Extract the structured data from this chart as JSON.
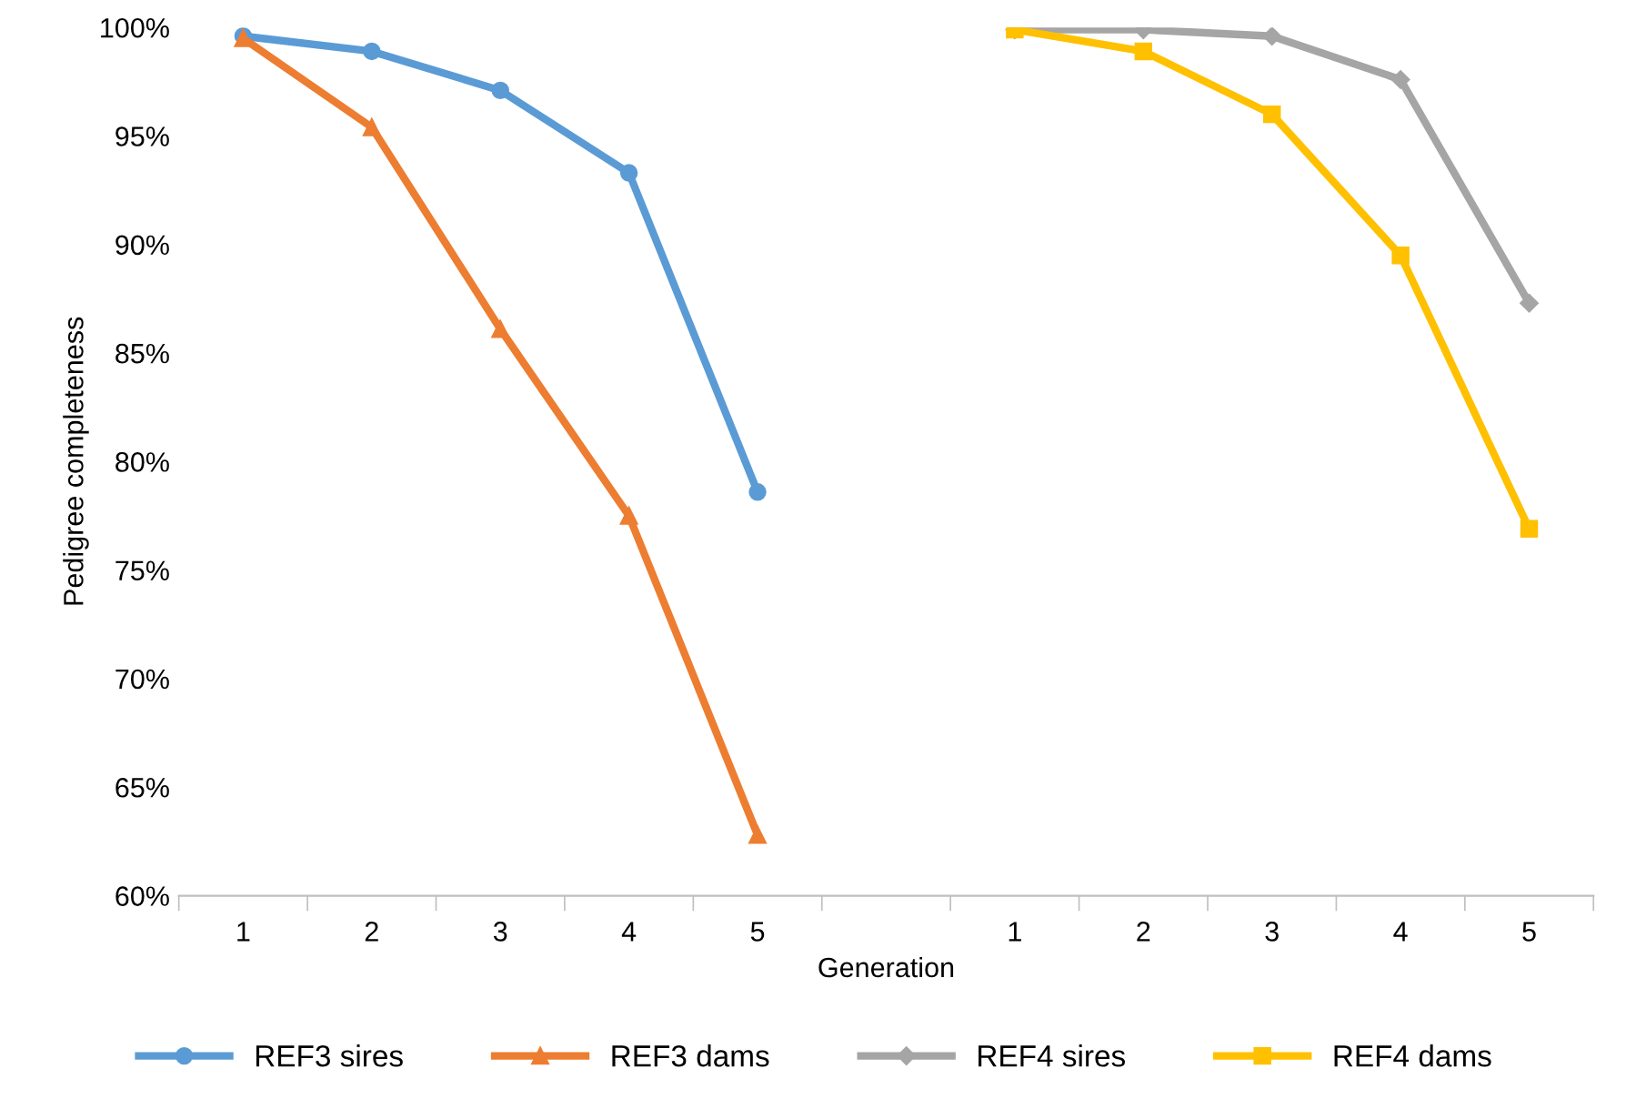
{
  "chart_data": {
    "type": "line",
    "xlabel": "Generation",
    "ylabel": "Pedigree completeness",
    "categories": [
      "1",
      "2",
      "3",
      "4",
      "5",
      null,
      "1",
      "2",
      "3",
      "4",
      "5"
    ],
    "series": [
      {
        "name": "REF3 sires",
        "color": "#5b9bd5",
        "marker": "circle",
        "values": [
          99.6,
          98.9,
          97.1,
          93.3,
          78.6,
          null,
          null,
          null,
          null,
          null,
          null
        ]
      },
      {
        "name": "REF3 dams",
        "color": "#ed7d31",
        "marker": "triangle",
        "values": [
          99.5,
          95.4,
          86.1,
          77.5,
          62.8,
          null,
          null,
          null,
          null,
          null,
          null
        ]
      },
      {
        "name": "REF4 sires",
        "color": "#a5a5a5",
        "marker": "diamond",
        "values": [
          null,
          null,
          null,
          null,
          null,
          null,
          99.9,
          99.9,
          99.6,
          97.6,
          87.3
        ]
      },
      {
        "name": "REF4 dams",
        "color": "#ffc000",
        "marker": "square",
        "values": [
          null,
          null,
          null,
          null,
          null,
          null,
          99.9,
          98.9,
          96.0,
          89.5,
          76.9
        ]
      }
    ],
    "ylim": [
      60,
      100
    ],
    "yticks": [
      {
        "value": 60,
        "label": "60%"
      },
      {
        "value": 65,
        "label": "65%"
      },
      {
        "value": 70,
        "label": "70%"
      },
      {
        "value": 75,
        "label": "75%"
      },
      {
        "value": 80,
        "label": "80%"
      },
      {
        "value": 85,
        "label": "85%"
      },
      {
        "value": 90,
        "label": "90%"
      },
      {
        "value": 95,
        "label": "95%"
      },
      {
        "value": 100,
        "label": "100%"
      }
    ],
    "grid": false,
    "legend": "bottom",
    "line_style": "solid"
  }
}
